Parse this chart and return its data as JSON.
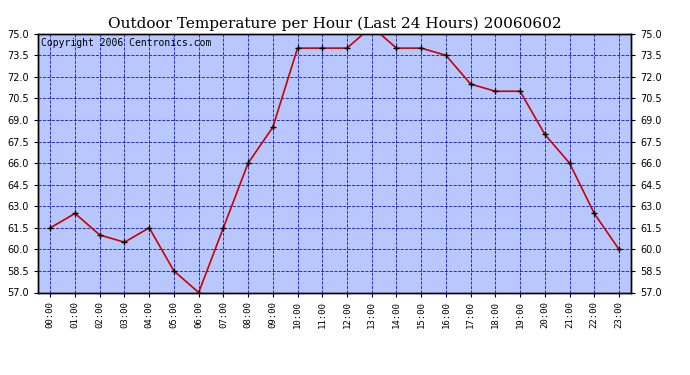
{
  "title": "Outdoor Temperature per Hour (Last 24 Hours) 20060602",
  "copyright_text": "Copyright 2006 Centronics.com",
  "hours": [
    "00:00",
    "01:00",
    "02:00",
    "03:00",
    "04:00",
    "05:00",
    "06:00",
    "07:00",
    "08:00",
    "09:00",
    "10:00",
    "11:00",
    "12:00",
    "13:00",
    "14:00",
    "15:00",
    "16:00",
    "17:00",
    "18:00",
    "19:00",
    "20:00",
    "21:00",
    "22:00",
    "23:00"
  ],
  "temperatures": [
    61.5,
    62.5,
    61.0,
    60.5,
    61.5,
    58.5,
    57.0,
    61.5,
    66.0,
    68.5,
    74.0,
    74.0,
    74.0,
    75.5,
    74.0,
    74.0,
    73.5,
    71.5,
    71.0,
    71.0,
    68.0,
    66.0,
    62.5,
    60.0
  ],
  "ylim": [
    57.0,
    75.0
  ],
  "yticks": [
    57.0,
    58.5,
    60.0,
    61.5,
    63.0,
    64.5,
    66.0,
    67.5,
    69.0,
    70.5,
    72.0,
    73.5,
    75.0
  ],
  "line_color": "#cc0000",
  "background_color": "#b8c8ff",
  "grid_color": "#0000bb",
  "title_fontsize": 11,
  "copyright_fontsize": 7
}
